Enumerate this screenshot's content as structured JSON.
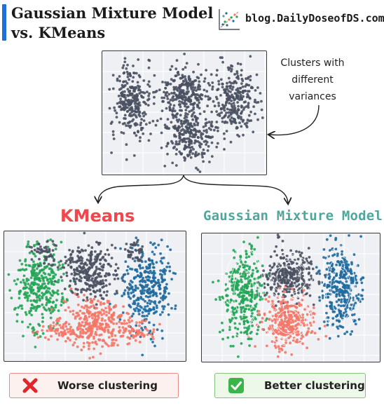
{
  "header": {
    "title_line1": "Gaussian Mixture Model",
    "title_line2": "vs. KMeans",
    "blog": "blog.DailyDoseofDS.com",
    "accent_color": "#1e6fd9",
    "logo_icon": "scatter-chart-logo-icon"
  },
  "annotation": {
    "lines": [
      "Clusters with",
      "different",
      "variances"
    ]
  },
  "kmeans": {
    "title": "KMeans",
    "title_color": "#f0464c",
    "verdict": "Worse clustering",
    "verdict_icon": "red-cross-icon"
  },
  "gmm": {
    "title": "Gaussian Mixture Model",
    "title_color": "#4fa79b",
    "verdict": "Better clustering",
    "verdict_icon": "green-check-icon"
  },
  "colors": {
    "gray": "#4a5160",
    "green": "#23a556",
    "blue": "#1f6a9e",
    "red": "#f47767",
    "panel_bg": "#eef0f4"
  }
}
